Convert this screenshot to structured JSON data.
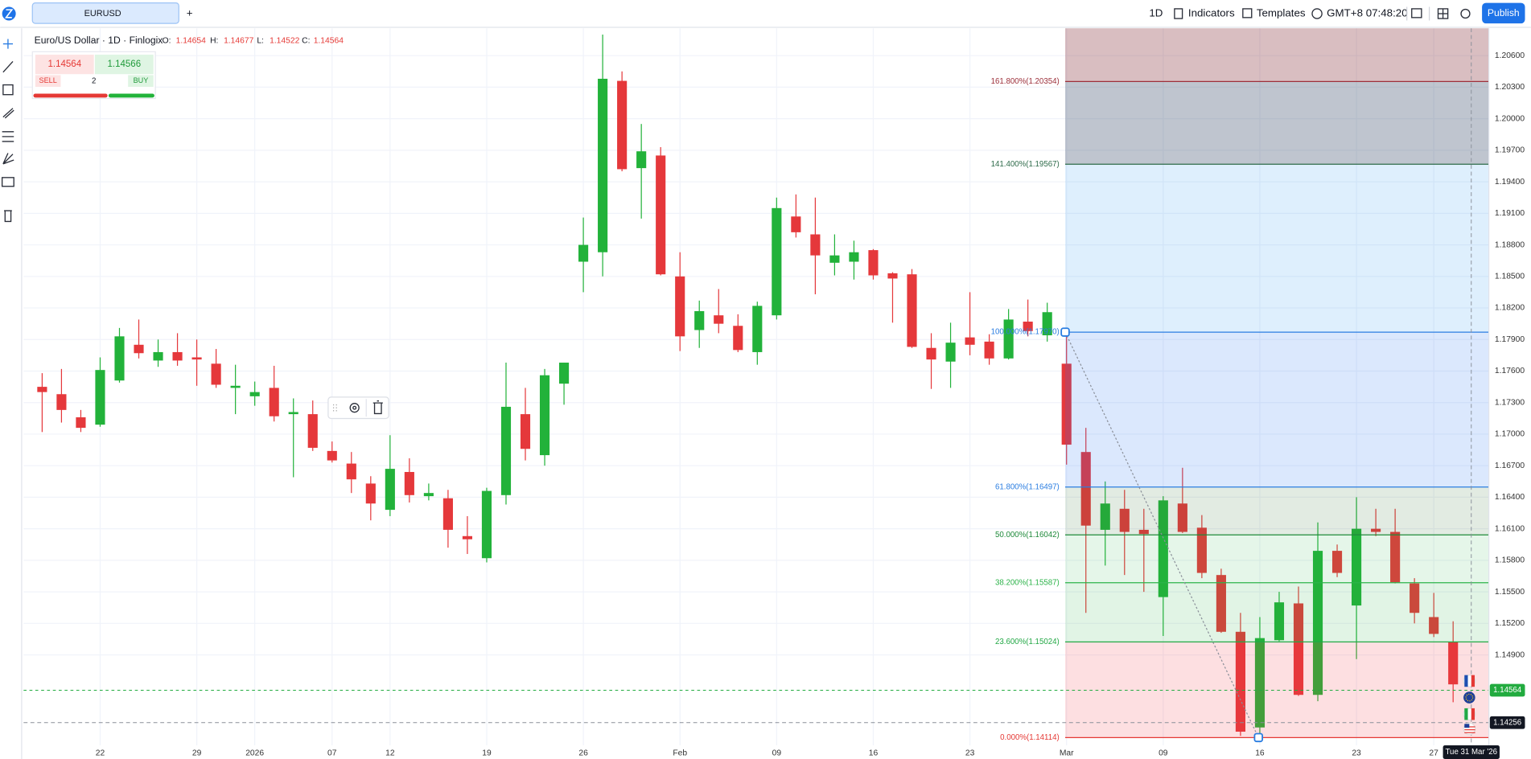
{
  "toolbar": {
    "symbol_tab": "EURUSD",
    "add_tab": "+",
    "interval": "1D",
    "indicators": "Indicators",
    "templates": "Templates",
    "timezone": "GMT+8",
    "clock": "07:48:20",
    "publish": "Publish"
  },
  "legend": {
    "name": "Euro/US Dollar · 1D · Finlogix",
    "o_label": "O:",
    "open": 1.14654,
    "h_label": "H:",
    "high": 1.14677,
    "l_label": "L:",
    "low": 1.14522,
    "c_label": "C:",
    "close": 1.14564
  },
  "trade": {
    "sell_price": 1.14564,
    "buy_price": 1.14566,
    "sell": "SELL",
    "quantity": 2,
    "buy": "BUY"
  },
  "chart_data": {
    "type": "candlestick",
    "categories": [
      null,
      null,
      null,
      "22",
      null,
      null,
      null,
      null,
      "29",
      null,
      null,
      "2026",
      null,
      null,
      null,
      "07",
      null,
      null,
      "12",
      null,
      null,
      null,
      null,
      "19",
      null,
      null,
      null,
      null,
      "26",
      null,
      null,
      null,
      null,
      "Feb",
      null,
      null,
      null,
      null,
      "09",
      null,
      null,
      null,
      null,
      "16",
      null,
      null,
      null,
      null,
      "23",
      null,
      null,
      null,
      null,
      "Mar",
      null,
      null,
      null,
      null,
      "09",
      null,
      null,
      null,
      null,
      "16",
      null,
      null,
      null,
      null,
      "23",
      null,
      null,
      null,
      "27",
      null
    ],
    "open": [
      1.1745,
      1.1738,
      1.1716,
      1.1709,
      1.1751,
      1.1785,
      1.177,
      1.1778,
      1.1773,
      1.1767,
      1.1744,
      1.1736,
      1.1744,
      1.1719,
      1.1719,
      1.1684,
      1.1672,
      1.1653,
      1.1628,
      1.1664,
      1.1641,
      1.1639,
      1.1603,
      1.1582,
      1.1642,
      1.1719,
      1.168,
      1.1748,
      1.1864,
      1.1873,
      1.2036,
      1.1953,
      1.1965,
      1.185,
      1.1799,
      1.1813,
      1.1803,
      1.1778,
      1.1813,
      1.1907,
      1.189,
      1.1863,
      1.1864,
      1.1875,
      1.1853,
      1.1852,
      1.1782,
      1.1769,
      1.1792,
      1.1788,
      1.1772,
      1.1807,
      1.1794,
      1.1767,
      1.1683,
      1.1609,
      1.1629,
      1.1609,
      1.1545,
      1.1634,
      1.1611,
      1.1566,
      1.1512,
      1.1421,
      1.1504,
      1.1539,
      1.1452,
      1.1589,
      1.1537,
      1.161,
      1.1607,
      1.1558,
      1.1526,
      1.1502
    ],
    "high": [
      1.1758,
      1.1762,
      1.1723,
      1.1773,
      1.1801,
      1.1809,
      1.179,
      1.1796,
      1.179,
      1.1781,
      1.1766,
      1.175,
      1.1765,
      1.1734,
      1.1732,
      1.1693,
      1.1683,
      1.166,
      1.1699,
      1.1677,
      1.1653,
      1.1647,
      1.1622,
      1.1649,
      1.1768,
      1.1744,
      1.1762,
      1.1768,
      1.1906,
      1.208,
      1.2045,
      1.1995,
      1.1973,
      1.1873,
      1.1827,
      1.1838,
      1.1814,
      1.1826,
      1.1925,
      1.1928,
      1.1925,
      1.189,
      1.1884,
      1.1876,
      1.1854,
      1.1857,
      1.1796,
      1.1806,
      1.1835,
      1.1795,
      1.1819,
      1.1828,
      1.1825,
      1.1797,
      1.1706,
      1.1655,
      1.1647,
      1.1629,
      1.1641,
      1.1668,
      1.1623,
      1.1572,
      1.153,
      1.1526,
      1.155,
      1.1555,
      1.1616,
      1.1595,
      1.164,
      1.1629,
      1.1629,
      1.1563,
      1.1549,
      1.1522
    ],
    "low": [
      1.1702,
      1.1711,
      1.1702,
      1.1707,
      1.1749,
      1.1772,
      1.1764,
      1.1765,
      1.1746,
      1.1744,
      1.1719,
      1.1727,
      1.1712,
      1.1659,
      1.1684,
      1.1673,
      1.1644,
      1.1618,
      1.1622,
      1.1635,
      1.1637,
      1.1592,
      1.1586,
      1.1578,
      1.1633,
      1.1675,
      1.167,
      1.1728,
      1.1835,
      1.185,
      1.195,
      1.1905,
      1.1851,
      1.1779,
      1.1782,
      1.1796,
      1.1778,
      1.1766,
      1.1809,
      1.1887,
      1.1833,
      1.1851,
      1.1847,
      1.1847,
      1.1806,
      1.1782,
      1.1743,
      1.1744,
      1.1775,
      1.1766,
      1.1771,
      1.1793,
      1.1788,
      1.1671,
      1.153,
      1.1575,
      1.1566,
      1.155,
      1.1508,
      1.1606,
      1.1563,
      1.1511,
      1.1413,
      1.1411,
      1.1503,
      1.1451,
      1.1446,
      1.1564,
      1.1486,
      1.1603,
      1.1558,
      1.152,
      1.1507,
      1.1445
    ],
    "close": [
      1.174,
      1.1723,
      1.1706,
      1.1761,
      1.1793,
      1.1777,
      1.1778,
      1.177,
      1.1771,
      1.1747,
      1.1746,
      1.174,
      1.1717,
      1.1721,
      1.1687,
      1.1675,
      1.1657,
      1.1634,
      1.1667,
      1.1642,
      1.1644,
      1.1609,
      1.16,
      1.1646,
      1.1726,
      1.1686,
      1.1756,
      1.1768,
      1.188,
      1.2038,
      1.1952,
      1.1969,
      1.1852,
      1.1793,
      1.1817,
      1.1805,
      1.178,
      1.1822,
      1.1915,
      1.1892,
      1.187,
      1.187,
      1.1873,
      1.1851,
      1.1848,
      1.1783,
      1.1771,
      1.1787,
      1.1785,
      1.1772,
      1.1809,
      1.1798,
      1.1816,
      1.169,
      1.1613,
      1.1634,
      1.1607,
      1.1605,
      1.1637,
      1.1607,
      1.1568,
      1.1512,
      1.1417,
      1.1506,
      1.154,
      1.1452,
      1.1589,
      1.1568,
      1.161,
      1.1607,
      1.1559,
      1.153,
      1.151,
      1.1462
    ],
    "up_color": "#22b23a",
    "down_color": "#e5383b",
    "ylim": [
      1.1404,
      1.2086
    ],
    "yticks": [
      {
        "value": 1.206,
        "label": "1.20600"
      },
      {
        "value": 1.203,
        "label": "1.20300"
      },
      {
        "value": 1.2,
        "label": "1.20000"
      },
      {
        "value": 1.197,
        "label": "1.19700"
      },
      {
        "value": 1.194,
        "label": "1.19400"
      },
      {
        "value": 1.191,
        "label": "1.19100"
      },
      {
        "value": 1.188,
        "label": "1.18800"
      },
      {
        "value": 1.185,
        "label": "1.18500"
      },
      {
        "value": 1.182,
        "label": "1.18200"
      },
      {
        "value": 1.179,
        "label": "1.17900"
      },
      {
        "value": 1.176,
        "label": "1.17600"
      },
      {
        "value": 1.173,
        "label": "1.17300"
      },
      {
        "value": 1.17,
        "label": "1.17000"
      },
      {
        "value": 1.167,
        "label": "1.16700"
      },
      {
        "value": 1.164,
        "label": "1.16400"
      },
      {
        "value": 1.161,
        "label": "1.16100"
      },
      {
        "value": 1.158,
        "label": "1.15800"
      },
      {
        "value": 1.155,
        "label": "1.15500"
      },
      {
        "value": 1.152,
        "label": "1.15200"
      },
      {
        "value": 1.149,
        "label": "1.14900"
      }
    ],
    "grid": true,
    "fib_levels": [
      {
        "label": "0.000%(1.14114)",
        "value": 1.14114,
        "color": "#e53935",
        "fill": "rgba(242,54,69,0.16)"
      },
      {
        "label": "23.600%(1.15024)",
        "value": 1.15024,
        "color": "#22a845",
        "fill": "rgba(40,180,70,0.14)"
      },
      {
        "label": "38.200%(1.15587)",
        "value": 1.15587,
        "color": "#2db34a",
        "fill": "rgba(40,180,70,0.12)"
      },
      {
        "label": "50.000%(1.16042)",
        "value": 1.16042,
        "color": "#1f8a3a",
        "fill": "rgba(60,120,60,0.15)"
      },
      {
        "label": "61.800%(1.16497)",
        "value": 1.16497,
        "color": "#2a7de1",
        "fill": "rgba(30,110,240,0.16)"
      },
      {
        "label": "100.000%(1.17970)",
        "value": 1.1797,
        "color": "#2a7de1",
        "fill": "rgba(33,150,243,0.15)"
      },
      {
        "label": "141.400%(1.19567)",
        "value": 1.19567,
        "color": "#2e6b4a",
        "fill": "rgba(60,80,110,0.33)"
      },
      {
        "label": "161.800%(1.20354)",
        "value": 1.20354,
        "color": "#9c2f3a",
        "fill": "rgba(128,40,50,0.3)"
      }
    ],
    "last_price": 1.14564,
    "last_price_color": "#22ab3f",
    "crosshair_price": 1.14256,
    "crosshair_date": "Tue 31 Mar '26"
  }
}
